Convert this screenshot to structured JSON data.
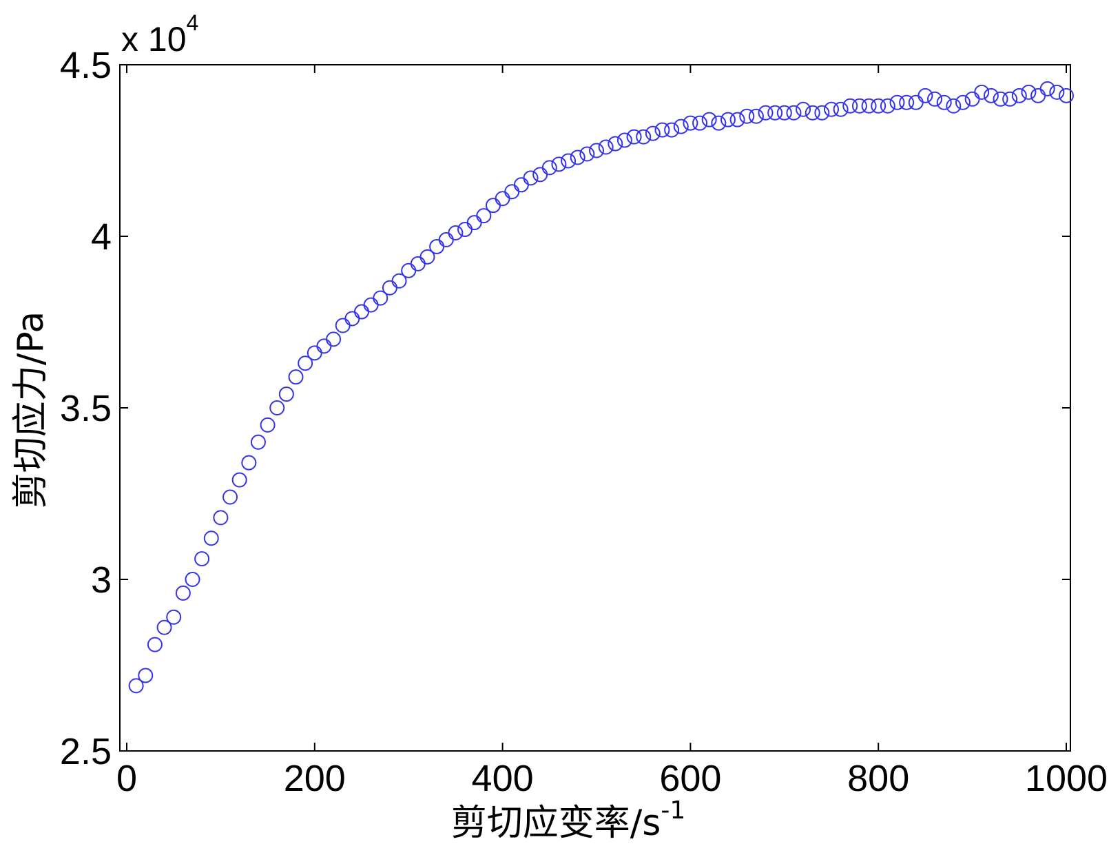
{
  "chart_data": {
    "type": "scatter",
    "xlabel_main": "剪切应变率/s",
    "xlabel_sup": "-1",
    "ylabel": "剪切应力/Pa",
    "y_multiplier_base": "x 10",
    "y_multiplier_exp": "4",
    "xlim": [
      0,
      1000
    ],
    "ylim": [
      2.5,
      4.5
    ],
    "x_ticks": [
      "0",
      "200",
      "400",
      "600",
      "800",
      "1000"
    ],
    "y_ticks": [
      "2.5",
      "3",
      "3.5",
      "4",
      "4.5"
    ],
    "x_tick_values": [
      0,
      200,
      400,
      600,
      800,
      1000
    ],
    "y_tick_values": [
      2.5,
      3,
      3.5,
      4,
      4.5
    ],
    "grid": false,
    "marker_color": "#3333ee",
    "series": [
      {
        "marker": "circle",
        "x": [
          10,
          20,
          30,
          40,
          50,
          60,
          70,
          80,
          90,
          100,
          110,
          120,
          130,
          140,
          150,
          160,
          170,
          180,
          190,
          200,
          210,
          220,
          230,
          240,
          250,
          260,
          270,
          280,
          290,
          300,
          310,
          320,
          330,
          340,
          350,
          360,
          370,
          380,
          390,
          400,
          410,
          420,
          430,
          440,
          450,
          460,
          470,
          480,
          490,
          500,
          510,
          520,
          530,
          540,
          550,
          560,
          570,
          580,
          590,
          600,
          610,
          620,
          630,
          640,
          650,
          660,
          670,
          680,
          690,
          700,
          710,
          720,
          730,
          740,
          750,
          760,
          770,
          780,
          790,
          800,
          810,
          820,
          830,
          840,
          850,
          860,
          870,
          880,
          890,
          900,
          910,
          920,
          930,
          940,
          950,
          960,
          970,
          980,
          990,
          1000
        ],
        "y": [
          2.69,
          2.72,
          2.81,
          2.86,
          2.89,
          2.96,
          3.0,
          3.06,
          3.12,
          3.18,
          3.24,
          3.29,
          3.34,
          3.4,
          3.45,
          3.5,
          3.54,
          3.59,
          3.63,
          3.66,
          3.68,
          3.7,
          3.74,
          3.76,
          3.78,
          3.8,
          3.82,
          3.85,
          3.87,
          3.9,
          3.92,
          3.94,
          3.97,
          3.99,
          4.01,
          4.02,
          4.04,
          4.06,
          4.09,
          4.11,
          4.13,
          4.15,
          4.17,
          4.18,
          4.2,
          4.21,
          4.22,
          4.23,
          4.24,
          4.25,
          4.26,
          4.27,
          4.28,
          4.29,
          4.29,
          4.3,
          4.31,
          4.31,
          4.32,
          4.33,
          4.33,
          4.34,
          4.33,
          4.34,
          4.34,
          4.35,
          4.35,
          4.36,
          4.36,
          4.36,
          4.36,
          4.37,
          4.36,
          4.36,
          4.37,
          4.37,
          4.38,
          4.38,
          4.38,
          4.38,
          4.38,
          4.39,
          4.39,
          4.39,
          4.41,
          4.4,
          4.39,
          4.38,
          4.39,
          4.4,
          4.42,
          4.41,
          4.4,
          4.4,
          4.41,
          4.42,
          4.41,
          4.43,
          4.42,
          4.41
        ]
      }
    ]
  }
}
